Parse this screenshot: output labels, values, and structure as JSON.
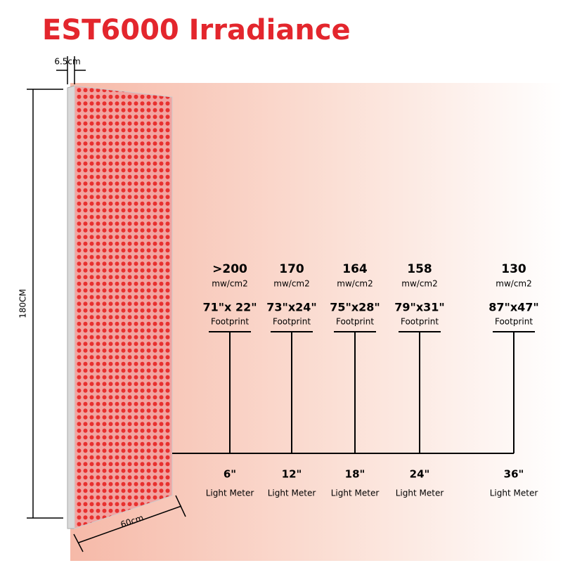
{
  "title": "EST6000 Irradiance",
  "dimensions": {
    "depth": "6.5cm",
    "height": "180CM",
    "width": "60cm"
  },
  "columns": [
    {
      "irradiance": ">200",
      "unit": "mw/cm2",
      "footprint": "71\"x 22\"",
      "footprint_label": "Footprint",
      "distance": "6\"",
      "meter": "Light Meter"
    },
    {
      "irradiance": "170",
      "unit": "mw/cm2",
      "footprint": "73\"x24\"",
      "footprint_label": "Footprint",
      "distance": "12\"",
      "meter": "Light Meter"
    },
    {
      "irradiance": "164",
      "unit": "mw/cm2",
      "footprint": "75\"x28\"",
      "footprint_label": "Footprint",
      "distance": "18\"",
      "meter": "Light Meter"
    },
    {
      "irradiance": "158",
      "unit": "mw/cm2",
      "footprint": "79\"x31\"",
      "footprint_label": "Footprint",
      "distance": "24\"",
      "meter": "Light Meter"
    },
    {
      "irradiance": "130",
      "unit": "mw/cm2",
      "footprint": "87\"x47\"",
      "footprint_label": "Footprint",
      "distance": "36\"",
      "meter": "Light Meter"
    }
  ]
}
